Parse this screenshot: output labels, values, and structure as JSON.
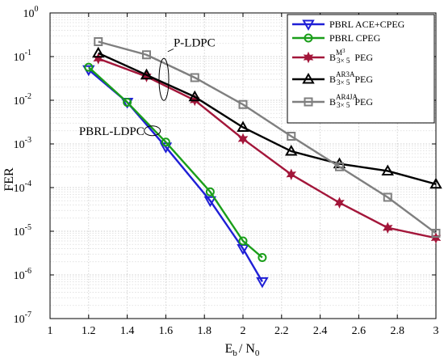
{
  "chart_data": {
    "type": "line",
    "title": "",
    "xlabel": "E",
    "xlabel_sub1": "b",
    "xlabel_mid": "/ N",
    "xlabel_sub2": "0",
    "ylabel": "FER",
    "xlim": [
      1,
      3
    ],
    "ylim_log10": [
      -7,
      0
    ],
    "y_scale": "log",
    "grid": true,
    "legend_position": "top-right",
    "x_ticks": [
      "1",
      "1.2",
      "1.4",
      "1.6",
      "1.8",
      "2",
      "2.2",
      "2.4",
      "2.6",
      "2.8",
      "3"
    ],
    "y_ticks": [
      {
        "base": "10",
        "exp": "0"
      },
      {
        "base": "10",
        "exp": "-1"
      },
      {
        "base": "10",
        "exp": "-2"
      },
      {
        "base": "10",
        "exp": "-3"
      },
      {
        "base": "10",
        "exp": "-4"
      },
      {
        "base": "10",
        "exp": "-5"
      },
      {
        "base": "10",
        "exp": "-6"
      },
      {
        "base": "10",
        "exp": "-7"
      }
    ],
    "annotations": [
      {
        "text": "P-LDPC",
        "x": 1.6,
        "y": 0.03
      },
      {
        "text": "PBRL-LDPC",
        "x": 1.53,
        "y": 0.002
      }
    ],
    "series": [
      {
        "name": "PBRL ACE+CPEG",
        "color": "#1f1fd6",
        "marker": "triangle-down",
        "x": [
          1.2,
          1.4,
          1.6,
          1.83,
          2.0,
          2.1
        ],
        "y": [
          0.05,
          0.009,
          0.00085,
          5e-05,
          4e-06,
          7e-07
        ]
      },
      {
        "name": "PBRL CPEG",
        "color": "#1a9e1a",
        "marker": "circle",
        "x": [
          1.2,
          1.4,
          1.6,
          1.83,
          2.0,
          2.1
        ],
        "y": [
          0.057,
          0.009,
          0.0011,
          8e-05,
          6e-06,
          2.5e-06
        ]
      },
      {
        "name_base": "B",
        "name_sup": "M",
        "name_sup2": "3",
        "name_sub": "3× 5",
        "name_suffix": "PEG",
        "color": "#a3163a",
        "marker": "hexagram",
        "x": [
          1.25,
          1.5,
          1.75,
          2.0,
          2.25,
          2.5,
          2.75,
          3.0
        ],
        "y": [
          0.09,
          0.035,
          0.01,
          0.0013,
          0.0002,
          4.5e-05,
          1.2e-05,
          7e-06
        ]
      },
      {
        "name_base": "B",
        "name_sup": "AR3A",
        "name_sub": "3× 5",
        "name_suffix": "PEG",
        "color": "#000000",
        "marker": "triangle-up",
        "x": [
          1.25,
          1.5,
          1.75,
          2.0,
          2.25,
          2.5,
          2.75,
          3.0
        ],
        "y": [
          0.12,
          0.038,
          0.012,
          0.0024,
          0.00068,
          0.00035,
          0.00024,
          0.00012
        ]
      },
      {
        "name_base": "B",
        "name_sup": "AR4JA",
        "name_sub": "3× 5",
        "name_suffix": "PEG",
        "color": "#7f7f7f",
        "marker": "square",
        "x": [
          1.25,
          1.5,
          1.75,
          2.0,
          2.25,
          2.5,
          2.75,
          3.0
        ],
        "y": [
          0.22,
          0.11,
          0.033,
          0.008,
          0.0015,
          0.0003,
          6e-05,
          9e-06
        ]
      }
    ]
  }
}
